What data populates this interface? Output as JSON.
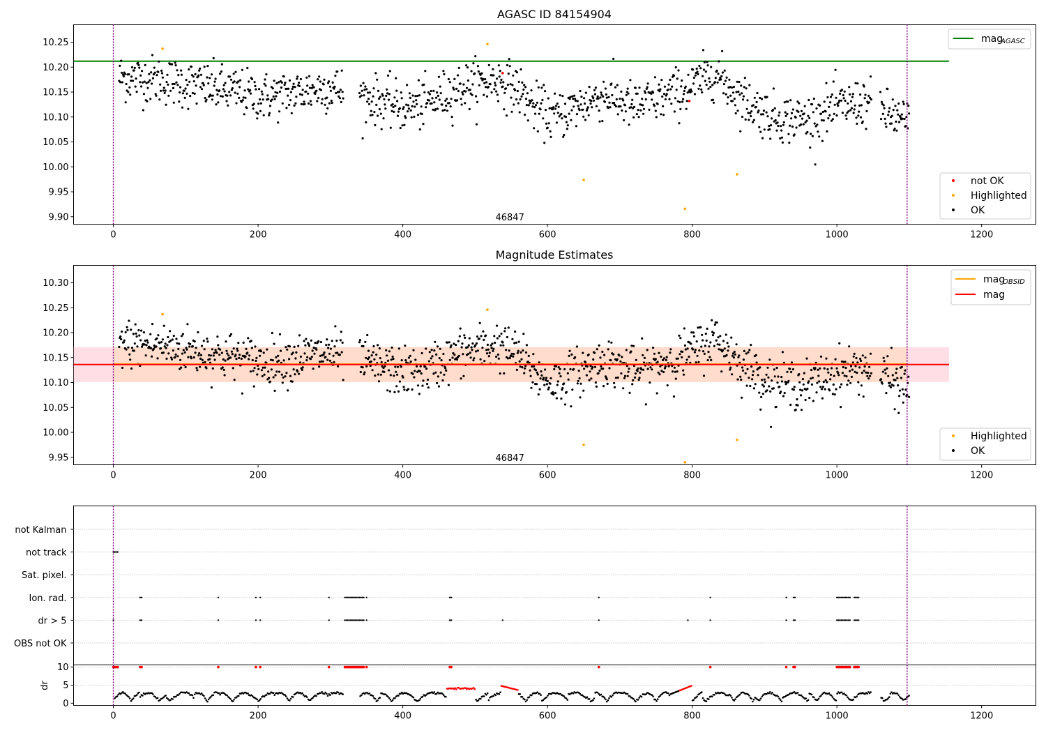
{
  "colors": {
    "ok": "#000000",
    "highlighted": "#ffa500",
    "not_ok": "#ff0000",
    "agasc_line": "#008000",
    "obsid_line": "#ffa500",
    "mag_line": "#ff0000",
    "band": "#ffc0cb",
    "band_inner": "#ffdab9",
    "vline": "#800080",
    "grid": "#b0b0b0"
  },
  "chart_data": [
    {
      "id": "panel1",
      "type": "scatter",
      "title": "AGASC ID 84154904",
      "xlim": [
        -55,
        1275
      ],
      "ylim": [
        9.885,
        10.285
      ],
      "xticks": [
        0,
        200,
        400,
        600,
        800,
        1000,
        1200
      ],
      "yticks": [
        9.9,
        9.95,
        10.0,
        10.05,
        10.1,
        10.15,
        10.2,
        10.25
      ],
      "hline": {
        "y": 10.212,
        "x": [
          -55,
          1155
        ],
        "label": "mag",
        "label_sub": "AGASC"
      },
      "vlines": [
        0,
        1097
      ],
      "annotations": [
        {
          "x": 548,
          "y": 9.893,
          "text": "46847"
        }
      ],
      "legend_points": [
        "not OK",
        "Highlighted",
        "OK"
      ],
      "highlighted": [
        [
          68,
          10.237
        ],
        [
          517,
          10.246
        ],
        [
          650,
          9.974
        ],
        [
          790,
          9.916
        ],
        [
          862,
          9.985
        ]
      ],
      "not_ok": [
        [
          538,
          10.188
        ],
        [
          796,
          10.132
        ]
      ],
      "ok_trend": [
        [
          5,
          10.18
        ],
        [
          60,
          10.175
        ],
        [
          130,
          10.16
        ],
        [
          210,
          10.14
        ],
        [
          300,
          10.16
        ],
        [
          320,
          10.15
        ],
        [
          400,
          10.12
        ],
        [
          430,
          10.125
        ],
        [
          480,
          10.16
        ],
        [
          530,
          10.175
        ],
        [
          560,
          10.155
        ],
        [
          580,
          10.12
        ],
        [
          610,
          10.1
        ],
        [
          640,
          10.12
        ],
        [
          680,
          10.145
        ],
        [
          720,
          10.12
        ],
        [
          760,
          10.14
        ],
        [
          800,
          10.16
        ],
        [
          830,
          10.19
        ],
        [
          870,
          10.135
        ],
        [
          910,
          10.1
        ],
        [
          960,
          10.095
        ],
        [
          1000,
          10.12
        ],
        [
          1040,
          10.13
        ],
        [
          1100,
          10.085
        ]
      ]
    },
    {
      "id": "panel2",
      "type": "scatter",
      "title": "Magnitude Estimates",
      "xlim": [
        -55,
        1275
      ],
      "ylim": [
        9.935,
        10.335
      ],
      "xticks": [
        0,
        200,
        400,
        600,
        800,
        1000,
        1200
      ],
      "yticks": [
        9.95,
        10.0,
        10.05,
        10.1,
        10.15,
        10.2,
        10.25,
        10.3
      ],
      "band": {
        "y": [
          10.101,
          10.171
        ],
        "x": [
          -55,
          1155
        ]
      },
      "hline": {
        "y": 10.136,
        "x": [
          -55,
          1155
        ],
        "label": "mag"
      },
      "obsid_line": {
        "label": "mag",
        "label_sub": "OBSID",
        "y": 10.137,
        "x": [
          0,
          1097
        ]
      },
      "vlines": [
        0,
        1097
      ],
      "annotations": [
        {
          "x": 548,
          "y": 9.943,
          "text": "46847"
        }
      ],
      "legend_points": [
        "Highlighted",
        "OK"
      ],
      "highlighted": [
        [
          68,
          10.237
        ],
        [
          517,
          10.246
        ],
        [
          650,
          9.975
        ],
        [
          790,
          9.94
        ],
        [
          862,
          9.985
        ]
      ],
      "not_ok": [],
      "ok_trend": [
        [
          5,
          10.18
        ],
        [
          60,
          10.175
        ],
        [
          130,
          10.16
        ],
        [
          210,
          10.14
        ],
        [
          300,
          10.16
        ],
        [
          320,
          10.15
        ],
        [
          400,
          10.12
        ],
        [
          430,
          10.125
        ],
        [
          480,
          10.16
        ],
        [
          530,
          10.175
        ],
        [
          560,
          10.155
        ],
        [
          580,
          10.12
        ],
        [
          610,
          10.1
        ],
        [
          640,
          10.12
        ],
        [
          680,
          10.145
        ],
        [
          720,
          10.12
        ],
        [
          760,
          10.14
        ],
        [
          800,
          10.16
        ],
        [
          830,
          10.19
        ],
        [
          870,
          10.135
        ],
        [
          910,
          10.1
        ],
        [
          960,
          10.095
        ],
        [
          1000,
          10.12
        ],
        [
          1040,
          10.13
        ],
        [
          1100,
          10.085
        ]
      ]
    },
    {
      "id": "panel3",
      "type": "scatter",
      "categories": [
        "not Kalman",
        "not track",
        "Sat. pixel.",
        "Ion. rad.",
        "dr > 5",
        "OBS not OK"
      ],
      "xlim": [
        -55,
        1275
      ],
      "vlines": [
        0,
        1097
      ],
      "flags": {
        "not track": [
          [
            0,
            6
          ]
        ],
        "Ion. rad.": [
          [
            37,
            40
          ],
          [
            145,
            145
          ],
          [
            197,
            197
          ],
          [
            203,
            203
          ],
          [
            298,
            298
          ],
          [
            320,
            347
          ],
          [
            350,
            350
          ],
          [
            465,
            468
          ],
          [
            671,
            671
          ],
          [
            825,
            825
          ],
          [
            930,
            930
          ],
          [
            940,
            943
          ],
          [
            1000,
            1018
          ],
          [
            1024,
            1030
          ]
        ],
        "dr > 5": [
          [
            0,
            0
          ],
          [
            37,
            40
          ],
          [
            145,
            145
          ],
          [
            197,
            197
          ],
          [
            203,
            203
          ],
          [
            298,
            298
          ],
          [
            320,
            347
          ],
          [
            350,
            350
          ],
          [
            465,
            468
          ],
          [
            538,
            538
          ],
          [
            671,
            671
          ],
          [
            794,
            794
          ],
          [
            825,
            825
          ],
          [
            930,
            930
          ],
          [
            940,
            943
          ],
          [
            1000,
            1018
          ],
          [
            1024,
            1030
          ]
        ]
      }
    },
    {
      "id": "panel4",
      "type": "scatter",
      "ylabel": "dr",
      "xlim": [
        -55,
        1275
      ],
      "ylim": [
        -0.6,
        10.6
      ],
      "xticks": [
        0,
        200,
        400,
        600,
        800,
        1000,
        1200
      ],
      "yticks": [
        0,
        5,
        10
      ],
      "vlines": [
        0,
        1097
      ],
      "red_at_10": [
        [
          0,
          6
        ],
        [
          37,
          40
        ],
        [
          145,
          145
        ],
        [
          197,
          197
        ],
        [
          203,
          203
        ],
        [
          298,
          298
        ],
        [
          320,
          347
        ],
        [
          350,
          350
        ],
        [
          465,
          468
        ],
        [
          671,
          671
        ],
        [
          825,
          825
        ],
        [
          930,
          930
        ],
        [
          940,
          943
        ],
        [
          1000,
          1018
        ],
        [
          1024,
          1030
        ]
      ]
    }
  ]
}
